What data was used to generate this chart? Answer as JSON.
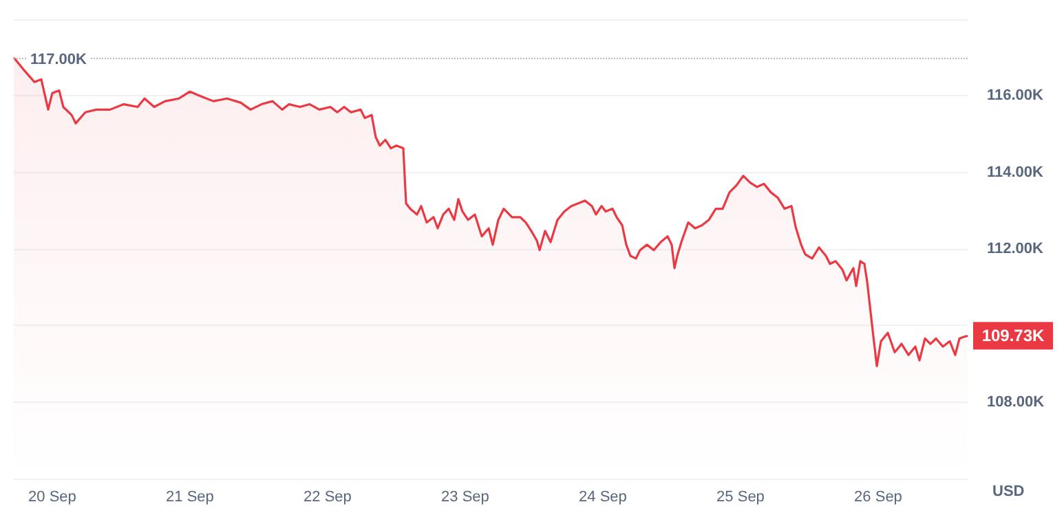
{
  "chart_data": {
    "type": "area",
    "ylabel": "USD",
    "color": "#ea3943",
    "x": [
      "--09-19T17:17",
      "--09-19T19:12",
      "--09-19T20:53",
      "--09-19T22:05",
      "--09-19T23:17",
      "--09-20T00:00",
      "--09-20T01:12",
      "--09-20T01:55",
      "--09-20T03:22",
      "--09-20T04:05",
      "--09-20T05:46",
      "--09-20T07:41",
      "--09-20T10:05",
      "--09-20T12:29",
      "--09-20T14:53",
      "--09-20T16:05",
      "--09-20T17:46",
      "--09-20T19:41",
      "--09-20T22:05",
      "--09-21T00:00",
      "--09-21T01:41",
      "--09-21T04:05",
      "--09-21T06:29",
      "--09-21T08:53",
      "--09-21T10:34",
      "--09-21T12:29",
      "--09-21T14:24",
      "--09-21T16:05",
      "--09-21T17:17",
      "--09-21T19:12",
      "--09-21T20:53",
      "--09-21T22:34",
      "--09-22T00:29",
      "--09-22T01:41",
      "--09-22T02:53",
      "--09-22T04:05",
      "--09-22T05:46",
      "--09-22T06:29",
      "--09-22T07:41",
      "--09-22T08:24",
      "--09-22T09:07",
      "--09-22T10:05",
      "--09-22T11:02",
      "--09-22T12:00",
      "--09-22T13:12",
      "--09-22T13:41",
      "--09-22T14:24",
      "--09-22T15:36",
      "--09-22T16:19",
      "--09-22T17:17",
      "--09-22T18:29",
      "--09-22T19:12",
      "--09-22T20:10",
      "--09-22T21:07",
      "--09-22T22:05",
      "--09-22T22:48",
      "--09-22T23:31",
      "--09-23T00:29",
      "--09-23T01:41",
      "--09-23T02:53",
      "--09-23T04:05",
      "--09-23T04:48",
      "--09-23T05:46",
      "--09-23T06:43",
      "--09-23T08:10",
      "--09-23T09:36",
      "--09-23T10:34",
      "--09-23T11:31",
      "--09-23T12:29",
      "--09-23T12:58",
      "--09-23T13:55",
      "--09-23T14:53",
      "--09-23T16:05",
      "--09-23T17:17",
      "--09-23T18:29",
      "--09-23T19:41",
      "--09-23T20:53",
      "--09-23T22:05",
      "--09-23T22:48",
      "--09-23T23:46",
      "--09-24T00:29",
      "--09-24T01:41",
      "--09-24T02:24",
      "--09-24T03:22",
      "--09-24T04:05",
      "--09-24T04:48",
      "--09-24T05:46",
      "--09-24T06:29",
      "--09-24T07:41",
      "--09-24T08:53",
      "--09-24T10:05",
      "--09-24T11:17",
      "--09-24T12:00",
      "--09-24T12:29",
      "--09-24T12:58",
      "--09-24T13:41",
      "--09-24T14:53",
      "--09-24T16:05",
      "--09-24T17:17",
      "--09-24T18:29",
      "--09-24T19:41",
      "--09-24T20:53",
      "--09-24T22:05",
      "--09-24T23:17",
      "--09-25T00:29",
      "--09-25T01:41",
      "--09-25T02:53",
      "--09-25T04:05",
      "--09-25T05:17",
      "--09-25T06:29",
      "--09-25T07:41",
      "--09-25T08:53",
      "--09-25T09:36",
      "--09-25T10:34",
      "--09-25T11:17",
      "--09-25T12:29",
      "--09-25T13:41",
      "--09-25T14:53",
      "--09-25T15:36",
      "--09-25T16:34",
      "--09-25T17:46",
      "--09-25T18:29",
      "--09-25T19:41",
      "--09-25T20:10",
      "--09-25T20:53",
      "--09-25T21:36",
      "--09-25T22:05",
      "--09-25T23:02",
      "--09-25T23:46",
      "--09-26T00:29",
      "--09-26T01:41",
      "--09-26T02:53",
      "--09-26T04:05",
      "--09-26T05:17",
      "--09-26T06:29",
      "--09-26T07:12",
      "--09-26T08:10",
      "--09-26T09:07",
      "--09-26T10:05",
      "--09-26T11:17",
      "--09-26T12:29",
      "--09-26T13:26",
      "--09-26T14:10",
      "--09-26T14:53",
      "--09-26T15:36"
    ],
    "values": [
      117000,
      116650,
      116360,
      116430,
      115640,
      116070,
      116140,
      115710,
      115500,
      115280,
      115570,
      115640,
      115640,
      115780,
      115710,
      115930,
      115710,
      115860,
      115930,
      116110,
      116000,
      115860,
      115930,
      115820,
      115640,
      115780,
      115860,
      115640,
      115780,
      115710,
      115780,
      115640,
      115710,
      115570,
      115710,
      115570,
      115640,
      115420,
      115500,
      114920,
      114700,
      114850,
      114630,
      114700,
      114630,
      113190,
      113050,
      112900,
      113120,
      112690,
      112830,
      112540,
      112900,
      113050,
      112760,
      113300,
      112980,
      112760,
      112900,
      112330,
      112540,
      112110,
      112760,
      113050,
      112830,
      112830,
      112690,
      112470,
      112220,
      111970,
      112470,
      112180,
      112760,
      112980,
      113120,
      113190,
      113260,
      113120,
      112900,
      113120,
      112980,
      113050,
      112830,
      112620,
      112110,
      111820,
      111750,
      111970,
      112110,
      111970,
      112180,
      112330,
      112110,
      111500,
      111820,
      112180,
      112690,
      112540,
      112620,
      112760,
      113050,
      113050,
      113480,
      113660,
      113910,
      113730,
      113620,
      113700,
      113480,
      113340,
      113050,
      113120,
      112580,
      112110,
      111860,
      111750,
      112040,
      111820,
      111610,
      111680,
      111460,
      111180,
      111500,
      111030,
      111680,
      111610,
      111140,
      109880,
      108940,
      109590,
      109810,
      109300,
      109520,
      109230,
      109450,
      109090,
      109660,
      109520,
      109660,
      109450,
      109590,
      109230,
      109660,
      109700,
      109730
    ],
    "xlim": [
      "--09-19T17:17",
      "--09-26T15:36"
    ],
    "xticks": [
      {
        "value": "--09-20",
        "label": "20 Sep"
      },
      {
        "value": "--09-21",
        "label": "21 Sep"
      },
      {
        "value": "--09-22",
        "label": "22 Sep"
      },
      {
        "value": "--09-23",
        "label": "23 Sep"
      },
      {
        "value": "--09-24",
        "label": "24 Sep"
      },
      {
        "value": "--09-25",
        "label": "25 Sep"
      },
      {
        "value": "--09-26",
        "label": "26 Sep"
      }
    ],
    "ylim": [
      106000,
      118000
    ],
    "yticks": [
      {
        "value": 108000,
        "label": "108.00K"
      },
      {
        "value": 110000,
        "label": null
      },
      {
        "value": 112000,
        "label": "112.00K"
      },
      {
        "value": 114000,
        "label": "114.00K"
      },
      {
        "value": 116000,
        "label": "116.00K"
      },
      {
        "value": 118000,
        "label": null
      }
    ],
    "ref_lines": [
      {
        "axis": "y",
        "value": 117000,
        "label": "117.00K",
        "color": "#bbbbbb",
        "line_style": "dotted"
      }
    ],
    "annotations": [
      {
        "text": "109.73K",
        "x": "--09-26T15:36",
        "y": 109730
      }
    ],
    "grid": "y",
    "marker": "none",
    "line_style": "solid"
  }
}
